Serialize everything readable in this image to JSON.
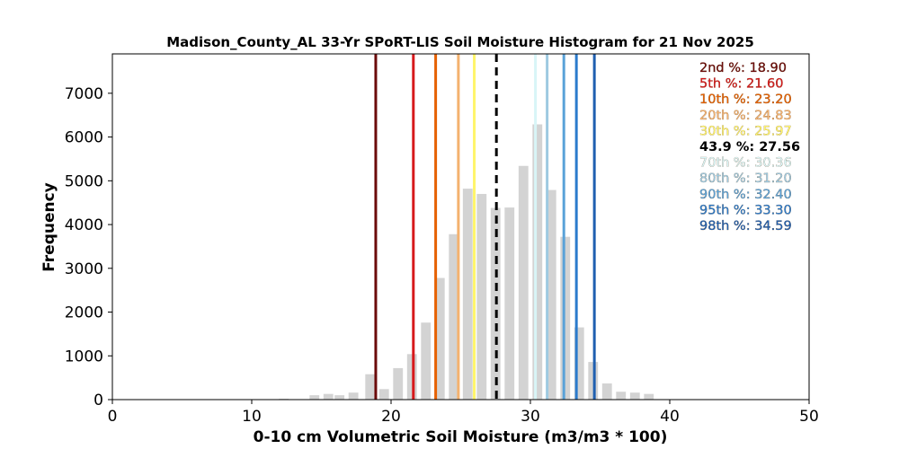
{
  "chart_data": {
    "type": "bar",
    "title": "Madison_County_AL 33-Yr SPoRT-LIS Soil Moisture Histogram for 21 Nov 2025",
    "xlabel": "0-10 cm Volumetric Soil Moisture (m3/m3 * 100)",
    "ylabel": "Frequency",
    "xlim": [
      0,
      50
    ],
    "ylim": [
      0,
      7900
    ],
    "xticks": [
      0,
      10,
      20,
      30,
      40,
      50
    ],
    "yticks": [
      0,
      1000,
      2000,
      3000,
      4000,
      5000,
      6000,
      7000
    ],
    "bar_color": "#d3d3d3",
    "bars": [
      {
        "x": 11.3,
        "value": 10
      },
      {
        "x": 12.3,
        "value": 20
      },
      {
        "x": 14.5,
        "value": 100
      },
      {
        "x": 15.5,
        "value": 130
      },
      {
        "x": 16.3,
        "value": 100
      },
      {
        "x": 17.3,
        "value": 160
      },
      {
        "x": 18.5,
        "value": 580
      },
      {
        "x": 19.5,
        "value": 240
      },
      {
        "x": 20.5,
        "value": 720
      },
      {
        "x": 21.5,
        "value": 1040
      },
      {
        "x": 22.5,
        "value": 1760
      },
      {
        "x": 23.5,
        "value": 2780
      },
      {
        "x": 24.5,
        "value": 3780
      },
      {
        "x": 25.5,
        "value": 4820
      },
      {
        "x": 26.5,
        "value": 4700
      },
      {
        "x": 27.5,
        "value": 4380
      },
      {
        "x": 28.5,
        "value": 4390
      },
      {
        "x": 29.5,
        "value": 5340
      },
      {
        "x": 30.5,
        "value": 6290
      },
      {
        "x": 31.5,
        "value": 4790
      },
      {
        "x": 32.5,
        "value": 3720
      },
      {
        "x": 33.5,
        "value": 1650
      },
      {
        "x": 34.5,
        "value": 860
      },
      {
        "x": 35.5,
        "value": 370
      },
      {
        "x": 36.5,
        "value": 180
      },
      {
        "x": 37.5,
        "value": 160
      },
      {
        "x": 38.5,
        "value": 130
      }
    ],
    "percentile_lines": [
      {
        "label": "2nd %: 18.90",
        "value": 18.9,
        "color": "#6b0b0b",
        "style": "solid"
      },
      {
        "label": "5th %: 21.60",
        "value": 21.6,
        "color": "#d7191c",
        "style": "solid"
      },
      {
        "label": "10th %: 23.20",
        "value": 23.2,
        "color": "#e66101",
        "style": "solid"
      },
      {
        "label": "20th %: 24.83",
        "value": 24.83,
        "color": "#f4b26f",
        "style": "solid"
      },
      {
        "label": "30th %: 25.97",
        "value": 25.97,
        "color": "#fff56b",
        "style": "solid"
      },
      {
        "label": "43.9 %: 27.56",
        "value": 27.56,
        "color": "#000000",
        "style": "dashed"
      },
      {
        "label": "70th %: 30.36",
        "value": 30.36,
        "color": "#d8f5f7",
        "style": "solid"
      },
      {
        "label": "80th %: 31.20",
        "value": 31.2,
        "color": "#9ecae1",
        "style": "solid"
      },
      {
        "label": "90th %: 32.40",
        "value": 32.4,
        "color": "#5aa2d8",
        "style": "solid"
      },
      {
        "label": "95th %: 33.30",
        "value": 33.3,
        "color": "#2b7bcc",
        "style": "solid"
      },
      {
        "label": "98th %: 34.59",
        "value": 34.59,
        "color": "#1f5fb0",
        "style": "solid"
      }
    ],
    "legend_placement": "top-right",
    "grid": false
  }
}
